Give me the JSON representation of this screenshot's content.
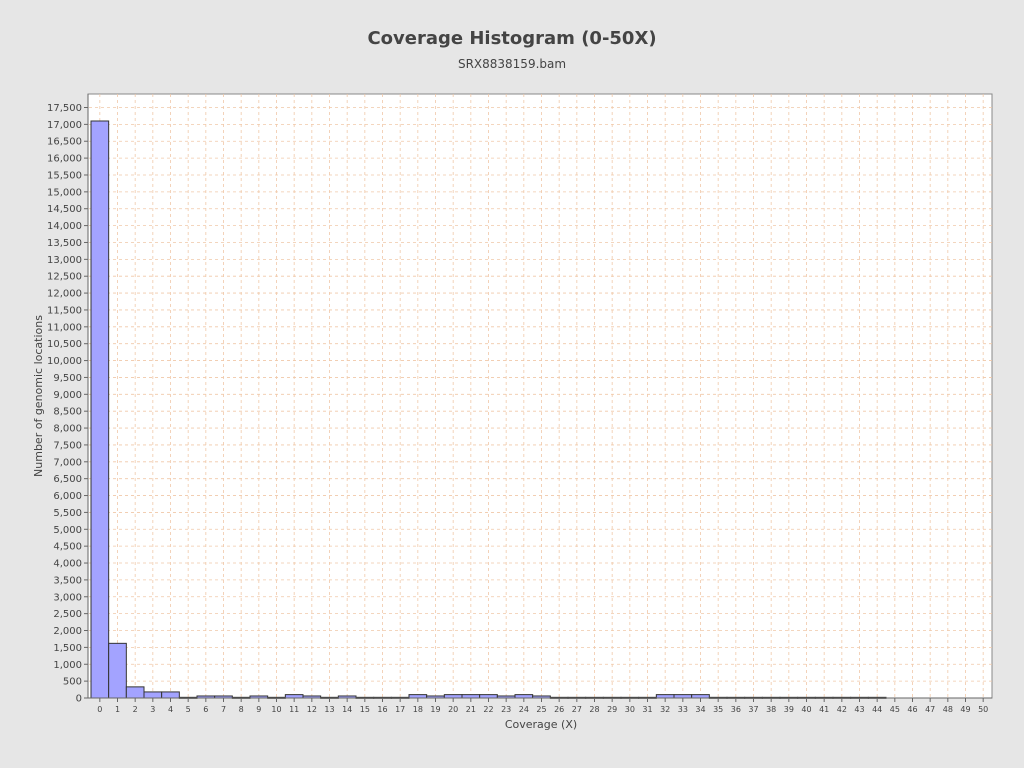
{
  "chart_data": {
    "type": "bar",
    "title": "Coverage Histogram (0-50X)",
    "subtitle": "SRX8838159.bam",
    "xlabel": "Coverage (X)",
    "ylabel": "Number of genomic locations",
    "categories": [
      "0",
      "1",
      "2",
      "3",
      "4",
      "5",
      "6",
      "7",
      "8",
      "9",
      "10",
      "11",
      "12",
      "13",
      "14",
      "15",
      "16",
      "17",
      "18",
      "19",
      "20",
      "21",
      "22",
      "23",
      "24",
      "25",
      "26",
      "27",
      "28",
      "29",
      "30",
      "31",
      "32",
      "33",
      "34",
      "35",
      "36",
      "37",
      "38",
      "39",
      "40",
      "41",
      "42",
      "43",
      "44",
      "45",
      "46",
      "47",
      "48",
      "49",
      "50"
    ],
    "values": [
      17100,
      1620,
      330,
      180,
      180,
      20,
      60,
      60,
      20,
      60,
      20,
      100,
      60,
      20,
      60,
      20,
      20,
      20,
      100,
      60,
      100,
      100,
      100,
      60,
      100,
      60,
      20,
      20,
      20,
      20,
      20,
      20,
      100,
      100,
      100,
      20,
      20,
      20,
      20,
      20,
      20,
      20,
      20,
      20,
      20,
      0,
      0,
      0,
      0,
      0,
      0
    ],
    "ylim": [
      0,
      17900
    ],
    "yticks": [
      0,
      500,
      1000,
      1500,
      2000,
      2500,
      3000,
      3500,
      4000,
      4500,
      5000,
      5500,
      6000,
      6500,
      7000,
      7500,
      8000,
      8500,
      9000,
      9500,
      10000,
      10500,
      11000,
      11500,
      12000,
      12500,
      13000,
      13500,
      14000,
      14500,
      15000,
      15500,
      16000,
      16500,
      17000,
      17500
    ],
    "ytick_labels": [
      "0",
      "500",
      "1,000",
      "1,500",
      "2,000",
      "2,500",
      "3,000",
      "3,500",
      "4,000",
      "4,500",
      "5,000",
      "5,500",
      "6,000",
      "6,500",
      "7,000",
      "7,500",
      "8,000",
      "8,500",
      "9,000",
      "9,500",
      "10,000",
      "10,500",
      "11,000",
      "11,500",
      "12,000",
      "12,500",
      "13,000",
      "13,500",
      "14,000",
      "14,500",
      "15,000",
      "15,500",
      "16,000",
      "16,500",
      "17,000",
      "17,500"
    ],
    "grid": true,
    "bar_color": "#a3a3ff",
    "bar_edge_color": "#333333",
    "grid_color": "#f0c8a8"
  }
}
